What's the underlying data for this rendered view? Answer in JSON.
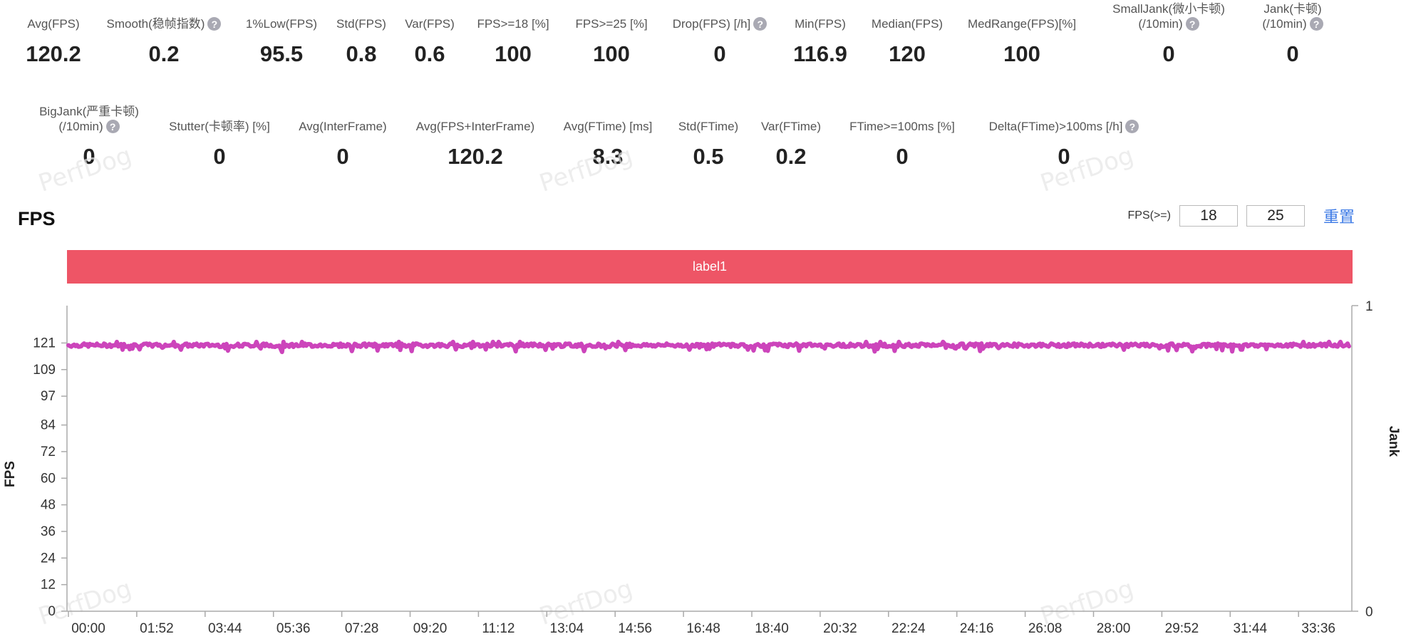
{
  "metrics_row1": [
    {
      "label": "Avg(FPS)",
      "value": "120.2"
    },
    {
      "label": "Smooth(稳帧指数)",
      "value": "0.2",
      "help": true
    },
    {
      "label": "1%Low(FPS)",
      "value": "95.5"
    },
    {
      "label": "Std(FPS)",
      "value": "0.8"
    },
    {
      "label": "Var(FPS)",
      "value": "0.6"
    },
    {
      "label": "FPS>=18 [%]",
      "value": "100"
    },
    {
      "label": "FPS>=25 [%]",
      "value": "100"
    },
    {
      "label": "Drop(FPS) [/h]",
      "value": "0",
      "help": true
    },
    {
      "label": "Min(FPS)",
      "value": "116.9"
    },
    {
      "label": "Median(FPS)",
      "value": "120"
    },
    {
      "label": "MedRange(FPS)[%]",
      "value": "100"
    },
    {
      "label": "SmallJank(微小卡顿)",
      "label2": "(/10min)",
      "value": "0",
      "help": true
    },
    {
      "label": "Jank(卡顿)",
      "label2": "(/10min)",
      "value": "0",
      "help": true
    }
  ],
  "metrics_row2": [
    {
      "label": "BigJank(严重卡顿)",
      "label2": "(/10min)",
      "value": "0",
      "help": true
    },
    {
      "label": "Stutter(卡顿率) [%]",
      "value": "0"
    },
    {
      "label": "Avg(InterFrame)",
      "value": "0"
    },
    {
      "label": "Avg(FPS+InterFrame)",
      "value": "120.2"
    },
    {
      "label": "Avg(FTime) [ms]",
      "value": "8.3"
    },
    {
      "label": "Std(FTime)",
      "value": "0.5"
    },
    {
      "label": "Var(FTime)",
      "value": "0.2"
    },
    {
      "label": "FTime>=100ms [%]",
      "value": "0"
    },
    {
      "label": "Delta(FTime)>100ms [/h]",
      "value": "0",
      "help": true
    }
  ],
  "help_glyph": "?",
  "watermark_text": "PerfDog",
  "chart_section": {
    "title": "FPS",
    "threshold_label": "FPS(>=)",
    "threshold_low": "18",
    "threshold_high": "25",
    "reset_label": "重置",
    "label_bar_text": "label1",
    "label_bar_color": "#ee5566",
    "line_color": "#cc44bb"
  },
  "chart_data": {
    "type": "line",
    "ylabel": "FPS",
    "y2label": "Jank",
    "y_ticks": [
      0,
      12,
      24,
      36,
      48,
      60,
      72,
      84,
      97,
      109,
      121
    ],
    "ylim": [
      0,
      134
    ],
    "y2_ticks": [
      0,
      1
    ],
    "x_ticks": [
      "00:00",
      "01:52",
      "03:44",
      "05:36",
      "07:28",
      "09:20",
      "11:12",
      "13:04",
      "14:56",
      "16:48",
      "18:40",
      "20:32",
      "22:24",
      "24:16",
      "26:08",
      "28:00",
      "29:52",
      "31:44",
      "33:36"
    ],
    "series": [
      {
        "values_summary": {
          "min": 116.9,
          "max": 121.5,
          "median": 120,
          "avg": 120.2
        }
      }
    ],
    "grid": false
  }
}
